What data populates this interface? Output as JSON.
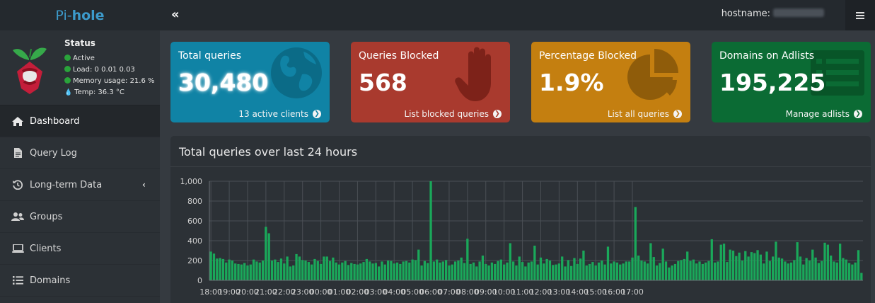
{
  "brand": {
    "prefix": "Pi-",
    "suffix": "hole"
  },
  "header": {
    "toggle_glyph": "«",
    "hostname_label": "hostname:"
  },
  "status": {
    "title": "Status",
    "active": "Active",
    "load": "Load:  0  0.01  0.03",
    "memory": "Memory usage:  21.6 %",
    "temp": "Temp: 36.3 °C",
    "colors": {
      "ok": "#2aa33b",
      "temp": "#3c9acb"
    }
  },
  "nav": [
    {
      "label": "Dashboard",
      "icon": "home-icon",
      "active": true
    },
    {
      "label": "Query Log",
      "icon": "file-icon"
    },
    {
      "label": "Long-term Data",
      "icon": "history-icon",
      "chevron": "‹"
    },
    {
      "label": "Groups",
      "icon": "users-icon"
    },
    {
      "label": "Clients",
      "icon": "laptop-icon"
    },
    {
      "label": "Domains",
      "icon": "list-icon"
    }
  ],
  "boxes": [
    {
      "title": "Total queries",
      "value": "30,480",
      "footer": "13 active clients",
      "icon": "globe-icon",
      "color": "#1083a5"
    },
    {
      "title": "Queries Blocked",
      "value": "568",
      "footer": "List blocked queries",
      "icon": "hand-icon",
      "color": "#a93a2e"
    },
    {
      "title": "Percentage Blocked",
      "value": "1.9%",
      "footer": "List all queries",
      "icon": "pie-chart-icon",
      "color": "#c47f10"
    },
    {
      "title": "Domains on Adlists",
      "value": "195,225",
      "footer": "Manage adlists",
      "icon": "list-alt-icon",
      "color": "#0b6b34"
    }
  ],
  "panel": {
    "title": "Total queries over last 24 hours"
  },
  "chart_data": {
    "type": "bar",
    "ylim": [
      0,
      1000
    ],
    "yticks": [
      "0",
      "200",
      "400",
      "600",
      "800",
      "1,000"
    ],
    "xticks": [
      "18:00",
      "19:00",
      "20:00",
      "21:00",
      "22:00",
      "23:00",
      "00:00",
      "01:00",
      "02:00",
      "03:00",
      "04:00",
      "05:00",
      "06:00",
      "07:00",
      "08:00",
      "09:00",
      "10:00",
      "11:00",
      "12:00",
      "13:00",
      "14:00",
      "15:00",
      "16:00",
      "17:00"
    ],
    "bars_per_hour": 6,
    "series": [
      {
        "color": "#1aa85a",
        "values": [
          290,
          270,
          220,
          225,
          215,
          180,
          210,
          200,
          170,
          165,
          160,
          175,
          150,
          160,
          210,
          190,
          180,
          200,
          540,
          475,
          200,
          210,
          185,
          220,
          170,
          240,
          140,
          150,
          265,
          240,
          205,
          200,
          185,
          160,
          215,
          195,
          165,
          240,
          240,
          195,
          230,
          180,
          160,
          180,
          195,
          155,
          175,
          165,
          160,
          170,
          185,
          215,
          190,
          170,
          175,
          140,
          190,
          160,
          200,
          195,
          170,
          180,
          165,
          190,
          195,
          180,
          210,
          205,
          310,
          150,
          195,
          175,
          1000,
          190,
          210,
          180,
          190,
          205,
          150,
          160,
          190,
          200,
          230,
          175,
          420,
          165,
          180,
          140,
          190,
          250,
          165,
          150,
          180,
          165,
          195,
          210,
          160,
          180,
          375,
          190,
          150,
          240,
          185,
          140,
          180,
          190,
          350,
          160,
          230,
          170,
          215,
          200,
          155,
          160,
          170,
          240,
          140,
          205,
          145,
          225,
          165,
          220,
          300,
          150,
          165,
          185,
          150,
          180,
          200,
          160,
          340,
          170,
          190,
          180,
          160,
          170,
          190,
          190,
          230,
          740,
          250,
          200,
          190,
          170,
          375,
          235,
          150,
          175,
          320,
          190,
          130,
          150,
          165,
          195,
          205,
          215,
          290,
          195,
          210,
          170,
          190,
          165,
          180,
          195,
          415,
          180,
          190,
          360,
          370,
          185,
          310,
          300,
          245,
          280,
          200,
          295,
          240,
          285,
          275,
          305,
          260,
          170,
          290,
          195,
          240,
          390,
          230,
          220,
          190,
          170,
          180,
          205,
          385,
          240,
          160,
          225,
          200,
          310,
          230,
          175,
          195,
          380,
          360,
          250,
          190,
          180,
          370,
          225,
          210,
          175,
          160,
          180,
          305,
          75
        ]
      }
    ]
  }
}
